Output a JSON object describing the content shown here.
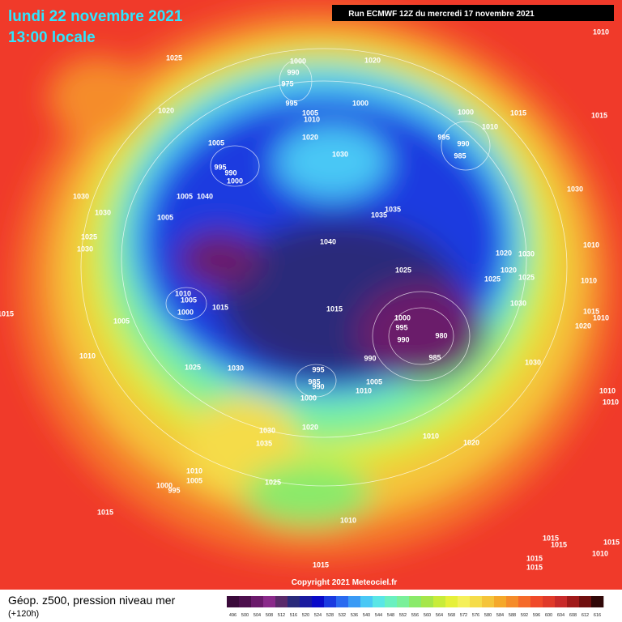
{
  "header": {
    "date": "lundi 22 novembre 2021",
    "time": "13:00 locale",
    "run": "Run ECMWF 12Z du mercredi 17 novembre 2021"
  },
  "footer": {
    "field": "Géop. z500, pression niveau mer",
    "lead": "(+120h)",
    "copyright": "Copyright 2021 Meteociel.fr"
  },
  "colorbar": {
    "ticks": [
      496,
      500,
      504,
      508,
      512,
      516,
      520,
      524,
      528,
      532,
      536,
      540,
      544,
      548,
      552,
      556,
      560,
      564,
      568,
      572,
      576,
      580,
      584,
      588,
      592,
      596,
      600,
      604,
      608,
      612,
      616
    ],
    "colors": [
      "#3a0a3a",
      "#4d0f4d",
      "#6b1a6b",
      "#8a2a8a",
      "#5a2a6a",
      "#2a2a7a",
      "#1a1aa0",
      "#0a0ac8",
      "#1a3ae0",
      "#2a6af0",
      "#3a9af5",
      "#4ac8f5",
      "#5ae6e6",
      "#6af0c0",
      "#7af09a",
      "#8aea6a",
      "#a6e64a",
      "#c8ec3a",
      "#e6f03a",
      "#f5f05a",
      "#f5dc4a",
      "#f5c43a",
      "#f5a82a",
      "#f58c2a",
      "#f56a2a",
      "#f04a2a",
      "#e03a2a",
      "#c82a2a",
      "#a01a1a",
      "#701010",
      "#300808"
    ]
  },
  "isobar_labels": [
    1010,
    1025,
    1000,
    990,
    975,
    1020,
    1000,
    995,
    1005,
    1010,
    1020,
    1000,
    1015,
    1015,
    1010,
    1005,
    1020,
    995,
    990,
    985,
    1030,
    995,
    990,
    1000,
    1030,
    1040,
    1005,
    1030,
    1035,
    1035,
    1030,
    1005,
    1025,
    1040,
    1030,
    1010,
    1020,
    1030,
    1025,
    1020,
    1025,
    1025,
    1010,
    1010,
    1005,
    1015,
    1000,
    1015,
    1030,
    1015,
    1015,
    1000,
    1005,
    995,
    990,
    980,
    1010,
    1020,
    1010,
    990,
    985,
    1030,
    1025,
    1030,
    995,
    985,
    990,
    1005,
    1010,
    1000,
    1010,
    1010,
    1010,
    1030,
    1020,
    1035,
    1020,
    1010,
    1005,
    1000,
    995,
    1025,
    1015,
    1010,
    1015,
    1015,
    1015,
    1015,
    1015,
    1015,
    1010
  ]
}
